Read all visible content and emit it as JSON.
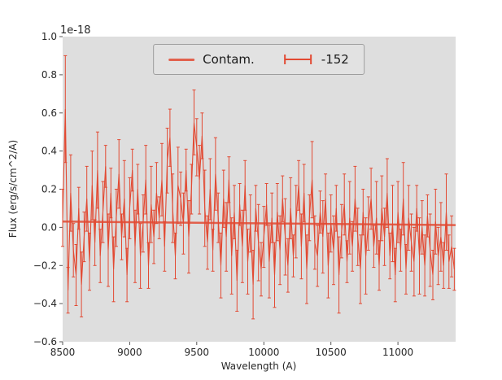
{
  "figure": {
    "background": "#ffffff",
    "axes_background": "#dedede",
    "accent_color": "#e24a33",
    "tick_color": "#555555",
    "label_color": "#262626"
  },
  "chart_data": {
    "type": "line",
    "title": "",
    "xlabel": "Wavelength (A)",
    "ylabel": "Flux (erg/s/cm^2/A)",
    "offset_text": "1e-18",
    "y_scale_factor": "1e-18",
    "xlim": [
      8500,
      11430
    ],
    "ylim": [
      -0.6,
      1.0
    ],
    "xticks": [
      8500,
      9000,
      9500,
      10000,
      10500,
      11000
    ],
    "yticks": [
      -0.6,
      -0.4,
      -0.2,
      0.0,
      0.2,
      0.4,
      0.6,
      0.8,
      1.0
    ],
    "grid": false,
    "legend_position": "upper center",
    "series": [
      {
        "name": "Contam.",
        "type": "line",
        "x": [
          8500,
          11430
        ],
        "y": [
          0.03,
          0.012
        ]
      },
      {
        "name": "-152",
        "type": "errorbar",
        "x": [
          8500,
          8520,
          8540,
          8560,
          8580,
          8600,
          8620,
          8640,
          8660,
          8680,
          8700,
          8720,
          8740,
          8760,
          8780,
          8800,
          8820,
          8840,
          8860,
          8880,
          8900,
          8920,
          8940,
          8960,
          8980,
          9000,
          9020,
          9040,
          9060,
          9080,
          9100,
          9120,
          9140,
          9160,
          9180,
          9200,
          9220,
          9240,
          9260,
          9280,
          9300,
          9320,
          9340,
          9360,
          9380,
          9400,
          9420,
          9440,
          9460,
          9480,
          9500,
          9520,
          9540,
          9560,
          9580,
          9600,
          9620,
          9640,
          9660,
          9680,
          9700,
          9720,
          9740,
          9760,
          9780,
          9800,
          9820,
          9840,
          9860,
          9880,
          9900,
          9920,
          9940,
          9960,
          9980,
          10000,
          10020,
          10040,
          10060,
          10080,
          10100,
          10120,
          10140,
          10160,
          10180,
          10200,
          10220,
          10240,
          10260,
          10280,
          10300,
          10320,
          10340,
          10360,
          10380,
          10400,
          10420,
          10440,
          10460,
          10480,
          10500,
          10520,
          10540,
          10560,
          10580,
          10600,
          10620,
          10640,
          10660,
          10680,
          10700,
          10720,
          10740,
          10760,
          10780,
          10800,
          10820,
          10840,
          10860,
          10880,
          10900,
          10920,
          10940,
          10960,
          10980,
          11000,
          11020,
          11040,
          11060,
          11080,
          11100,
          11120,
          11140,
          11160,
          11180,
          11200,
          11220,
          11240,
          11260,
          11280,
          11300,
          11320,
          11340,
          11360,
          11380,
          11400,
          11420
        ],
        "y": [
          0.05,
          0.62,
          -0.33,
          0.18,
          -0.12,
          -0.25,
          0.1,
          -0.3,
          -0.05,
          0.15,
          -0.18,
          0.22,
          -0.08,
          0.3,
          -0.15,
          0.08,
          0.32,
          -0.12,
          0.18,
          -0.22,
          0.05,
          0.28,
          -0.05,
          0.15,
          -0.25,
          0.1,
          0.3,
          -0.1,
          0.2,
          -0.15,
          0.02,
          0.25,
          -0.2,
          0.12,
          -0.05,
          0.18,
          0.05,
          0.25,
          -0.1,
          0.35,
          0.47,
          0.1,
          -0.15,
          0.22,
          0.15,
          0.02,
          0.3,
          -0.05,
          0.2,
          0.55,
          0.42,
          0.25,
          0.48,
          0.1,
          -0.08,
          0.2,
          -0.12,
          0.28,
          0.05,
          -0.2,
          0.15,
          -0.05,
          0.25,
          -0.15,
          0.08,
          -0.28,
          0.12,
          -0.1,
          0.22,
          -0.18,
          0.02,
          -0.3,
          0.1,
          -0.08,
          -0.22,
          -0.05,
          0.12,
          -0.18,
          0.05,
          -0.25,
          0.08,
          -0.12,
          0.15,
          -0.05,
          -0.2,
          0.1,
          -0.15,
          0.03,
          0.22,
          -0.1,
          0.18,
          -0.22,
          0.05,
          0.25,
          -0.08,
          -0.15,
          0.08,
          -0.05,
          0.15,
          -0.2,
          0.02,
          -0.12,
          0.1,
          -0.25,
          -0.02,
          0.12,
          -0.18,
          0.05,
          -0.1,
          0.15,
          -0.05,
          -0.22,
          0.08,
          -0.15,
          0.02,
          0.15,
          -0.1,
          0.05,
          -0.2,
          0.1,
          -0.05,
          0.18,
          -0.15,
          0.02,
          -0.25,
          0.08,
          -0.12,
          0.15,
          -0.22,
          0.05,
          -0.08,
          -0.18,
          0.1,
          -0.15,
          0.0,
          -0.2,
          0.06,
          -0.12,
          -0.25,
          0.03,
          -0.15,
          -0.05,
          -0.2,
          0.08,
          -0.18,
          -0.1,
          -0.22
        ],
        "yerr": [
          0.15,
          0.28,
          0.12,
          0.2,
          0.14,
          0.16,
          0.11,
          0.17,
          0.13,
          0.17,
          0.15,
          0.18,
          0.12,
          0.2,
          0.14,
          0.16,
          0.11,
          0.19,
          0.13,
          0.17,
          0.15,
          0.18,
          0.12,
          0.2,
          0.14,
          0.16,
          0.11,
          0.19,
          0.13,
          0.17,
          0.15,
          0.18,
          0.12,
          0.2,
          0.14,
          0.16,
          0.11,
          0.19,
          0.13,
          0.17,
          0.15,
          0.18,
          0.12,
          0.2,
          0.14,
          0.16,
          0.11,
          0.19,
          0.13,
          0.17,
          0.15,
          0.18,
          0.12,
          0.2,
          0.14,
          0.16,
          0.11,
          0.19,
          0.13,
          0.17,
          0.15,
          0.18,
          0.12,
          0.2,
          0.14,
          0.16,
          0.11,
          0.19,
          0.13,
          0.17,
          0.15,
          0.18,
          0.12,
          0.2,
          0.14,
          0.16,
          0.11,
          0.19,
          0.13,
          0.17,
          0.15,
          0.18,
          0.12,
          0.2,
          0.14,
          0.16,
          0.11,
          0.19,
          0.13,
          0.17,
          0.15,
          0.18,
          0.12,
          0.2,
          0.14,
          0.16,
          0.11,
          0.19,
          0.13,
          0.17,
          0.15,
          0.18,
          0.12,
          0.2,
          0.14,
          0.16,
          0.11,
          0.19,
          0.13,
          0.17,
          0.15,
          0.18,
          0.12,
          0.2,
          0.14,
          0.16,
          0.11,
          0.19,
          0.13,
          0.17,
          0.15,
          0.18,
          0.12,
          0.2,
          0.14,
          0.16,
          0.11,
          0.19,
          0.13,
          0.17,
          0.15,
          0.18,
          0.12,
          0.2,
          0.14,
          0.16,
          0.11,
          0.19,
          0.13,
          0.17,
          0.15,
          0.18,
          0.12,
          0.2,
          0.14,
          0.16,
          0.11
        ]
      }
    ]
  }
}
